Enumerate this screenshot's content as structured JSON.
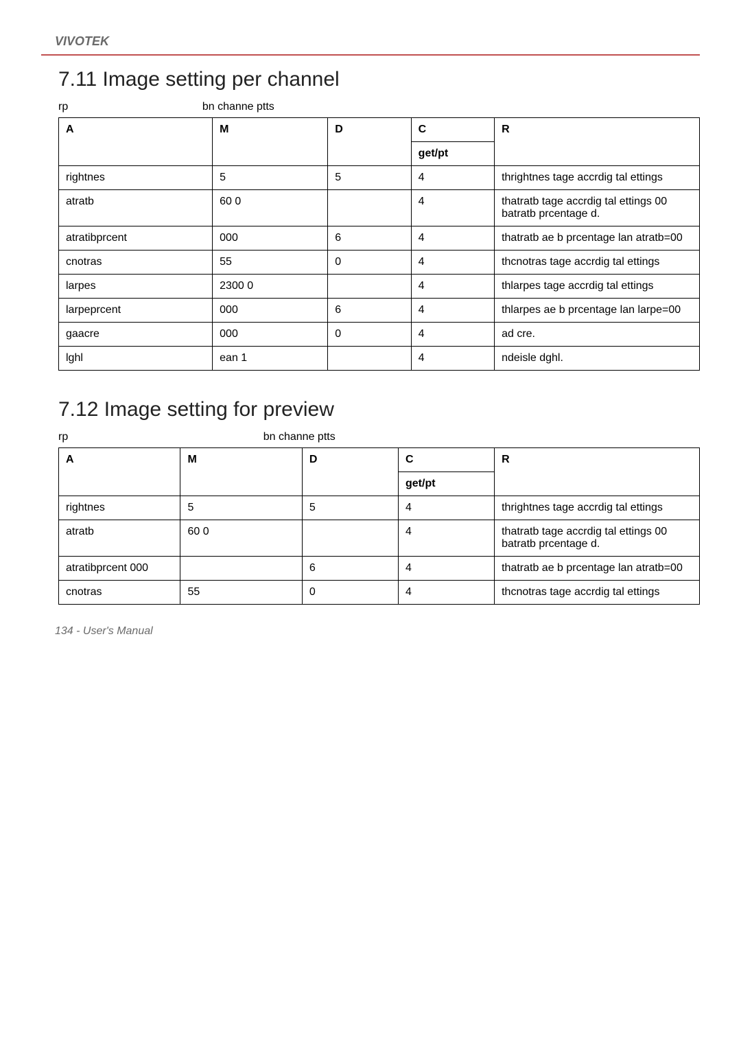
{
  "brand": "VIVOTEK",
  "footer": "134 - User's Manual",
  "colors": {
    "rule": "#c05050",
    "header_text": "#6a6a6a",
    "border": "#000000",
    "background": "#ffffff"
  },
  "typography": {
    "title_fontsize_pt": 22,
    "body_fontsize_pt": 12,
    "brand_fontsize_pt": 14
  },
  "sections": {
    "s711": {
      "title": "7.11 Image setting per channel",
      "group_caption_prefix": "rp",
      "group_caption_suffix": "bn channe ptts",
      "columns": [
        "A",
        "M",
        "D",
        "C",
        "R"
      ],
      "subheader": [
        "",
        "",
        "",
        "get/pt",
        ""
      ],
      "rows": [
        {
          "name": "rightnes",
          "value": "5",
          "default": "5",
          "sec": "4",
          "desc": "thrightnes tage accrdig tal ettings"
        },
        {
          "name": "atratb",
          "value": "60        0",
          "default": "",
          "sec": "4",
          "desc": "thatratb tage accrdig tal ettings 00 batratb prcentage d."
        },
        {
          "name": "atratibprcent",
          "value": "000",
          "default": "6",
          "sec": "4",
          "desc": "thatratb ae b prcentage lan atratb=00"
        },
        {
          "name": "cnotras",
          "value": "55",
          "default": "0",
          "sec": "4",
          "desc": "thcnotras tage accrdig tal ettings"
        },
        {
          "name": "larpes",
          "value": "2300        0",
          "default": "",
          "sec": "4",
          "desc": "thlarpes tage accrdig tal ettings"
        },
        {
          "name": "larpeprcent",
          "value": "000",
          "default": "6",
          "sec": "4",
          "desc": "thlarpes ae b prcentage lan larpe=00"
        },
        {
          "name": "gaacre",
          "value": "000",
          "default": "0",
          "sec": "4",
          "desc": "ad cre."
        },
        {
          "name": "lghl",
          "value": "ean        1",
          "default": "",
          "sec": "4",
          "desc": "ndeisle dghl."
        }
      ]
    },
    "s712": {
      "title": "7.12 Image setting for preview",
      "group_caption_prefix": "rp",
      "group_caption_suffix": "bn channe ptts",
      "columns": [
        "A",
        "M",
        "D",
        "C",
        "R"
      ],
      "subheader": [
        "",
        "",
        "",
        "get/pt",
        ""
      ],
      "rows": [
        {
          "name": "rightnes",
          "value": "5",
          "default": "5",
          "sec": "4",
          "desc": "thrightnes tage accrdig tal ettings"
        },
        {
          "name": "atratb",
          "value": "60        0",
          "default": "",
          "sec": "4",
          "desc": "thatratb tage accrdig tal ettings 00 batratb prcentage d."
        },
        {
          "name": "atratibprcent    000",
          "value": "",
          "default": "6",
          "sec": "4",
          "desc": "thatratb ae b prcentage lan atratb=00"
        },
        {
          "name": "cnotras",
          "value": "55",
          "default": "0",
          "sec": "4",
          "desc": "thcnotras tage accrdig tal ettings"
        }
      ]
    }
  }
}
